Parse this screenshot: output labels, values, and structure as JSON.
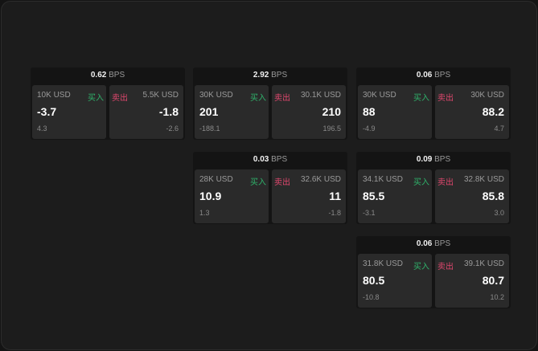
{
  "unit": "BPS",
  "buy_label": "买入",
  "sell_label": "卖出",
  "colors": {
    "buy": "#2fb36b",
    "sell": "#e0476e"
  },
  "cards": [
    {
      "spread": "0.62",
      "bid_size": "10K USD",
      "bid": "-3.7",
      "bid_change": "4.3",
      "ask_size": "5.5K USD",
      "ask": "-1.8",
      "ask_change": "-2.6"
    },
    {
      "spread": "2.92",
      "bid_size": "30K USD",
      "bid": "201",
      "bid_change": "-188.1",
      "ask_size": "30.1K USD",
      "ask": "210",
      "ask_change": "196.5"
    },
    {
      "spread": "0.06",
      "bid_size": "30K USD",
      "bid": "88",
      "bid_change": "-4.9",
      "ask_size": "30K USD",
      "ask": "88.2",
      "ask_change": "4.7"
    },
    {
      "spread": "0.03",
      "bid_size": "28K USD",
      "bid": "10.9",
      "bid_change": "1.3",
      "ask_size": "32.6K USD",
      "ask": "11",
      "ask_change": "-1.8"
    },
    {
      "spread": "0.09",
      "bid_size": "34.1K USD",
      "bid": "85.5",
      "bid_change": "-3.1",
      "ask_size": "32.8K USD",
      "ask": "85.8",
      "ask_change": "3.0"
    },
    {
      "spread": "0.06",
      "bid_size": "31.8K USD",
      "bid": "80.5",
      "bid_change": "-10.8",
      "ask_size": "39.1K USD",
      "ask": "80.7",
      "ask_change": "10.2"
    }
  ]
}
